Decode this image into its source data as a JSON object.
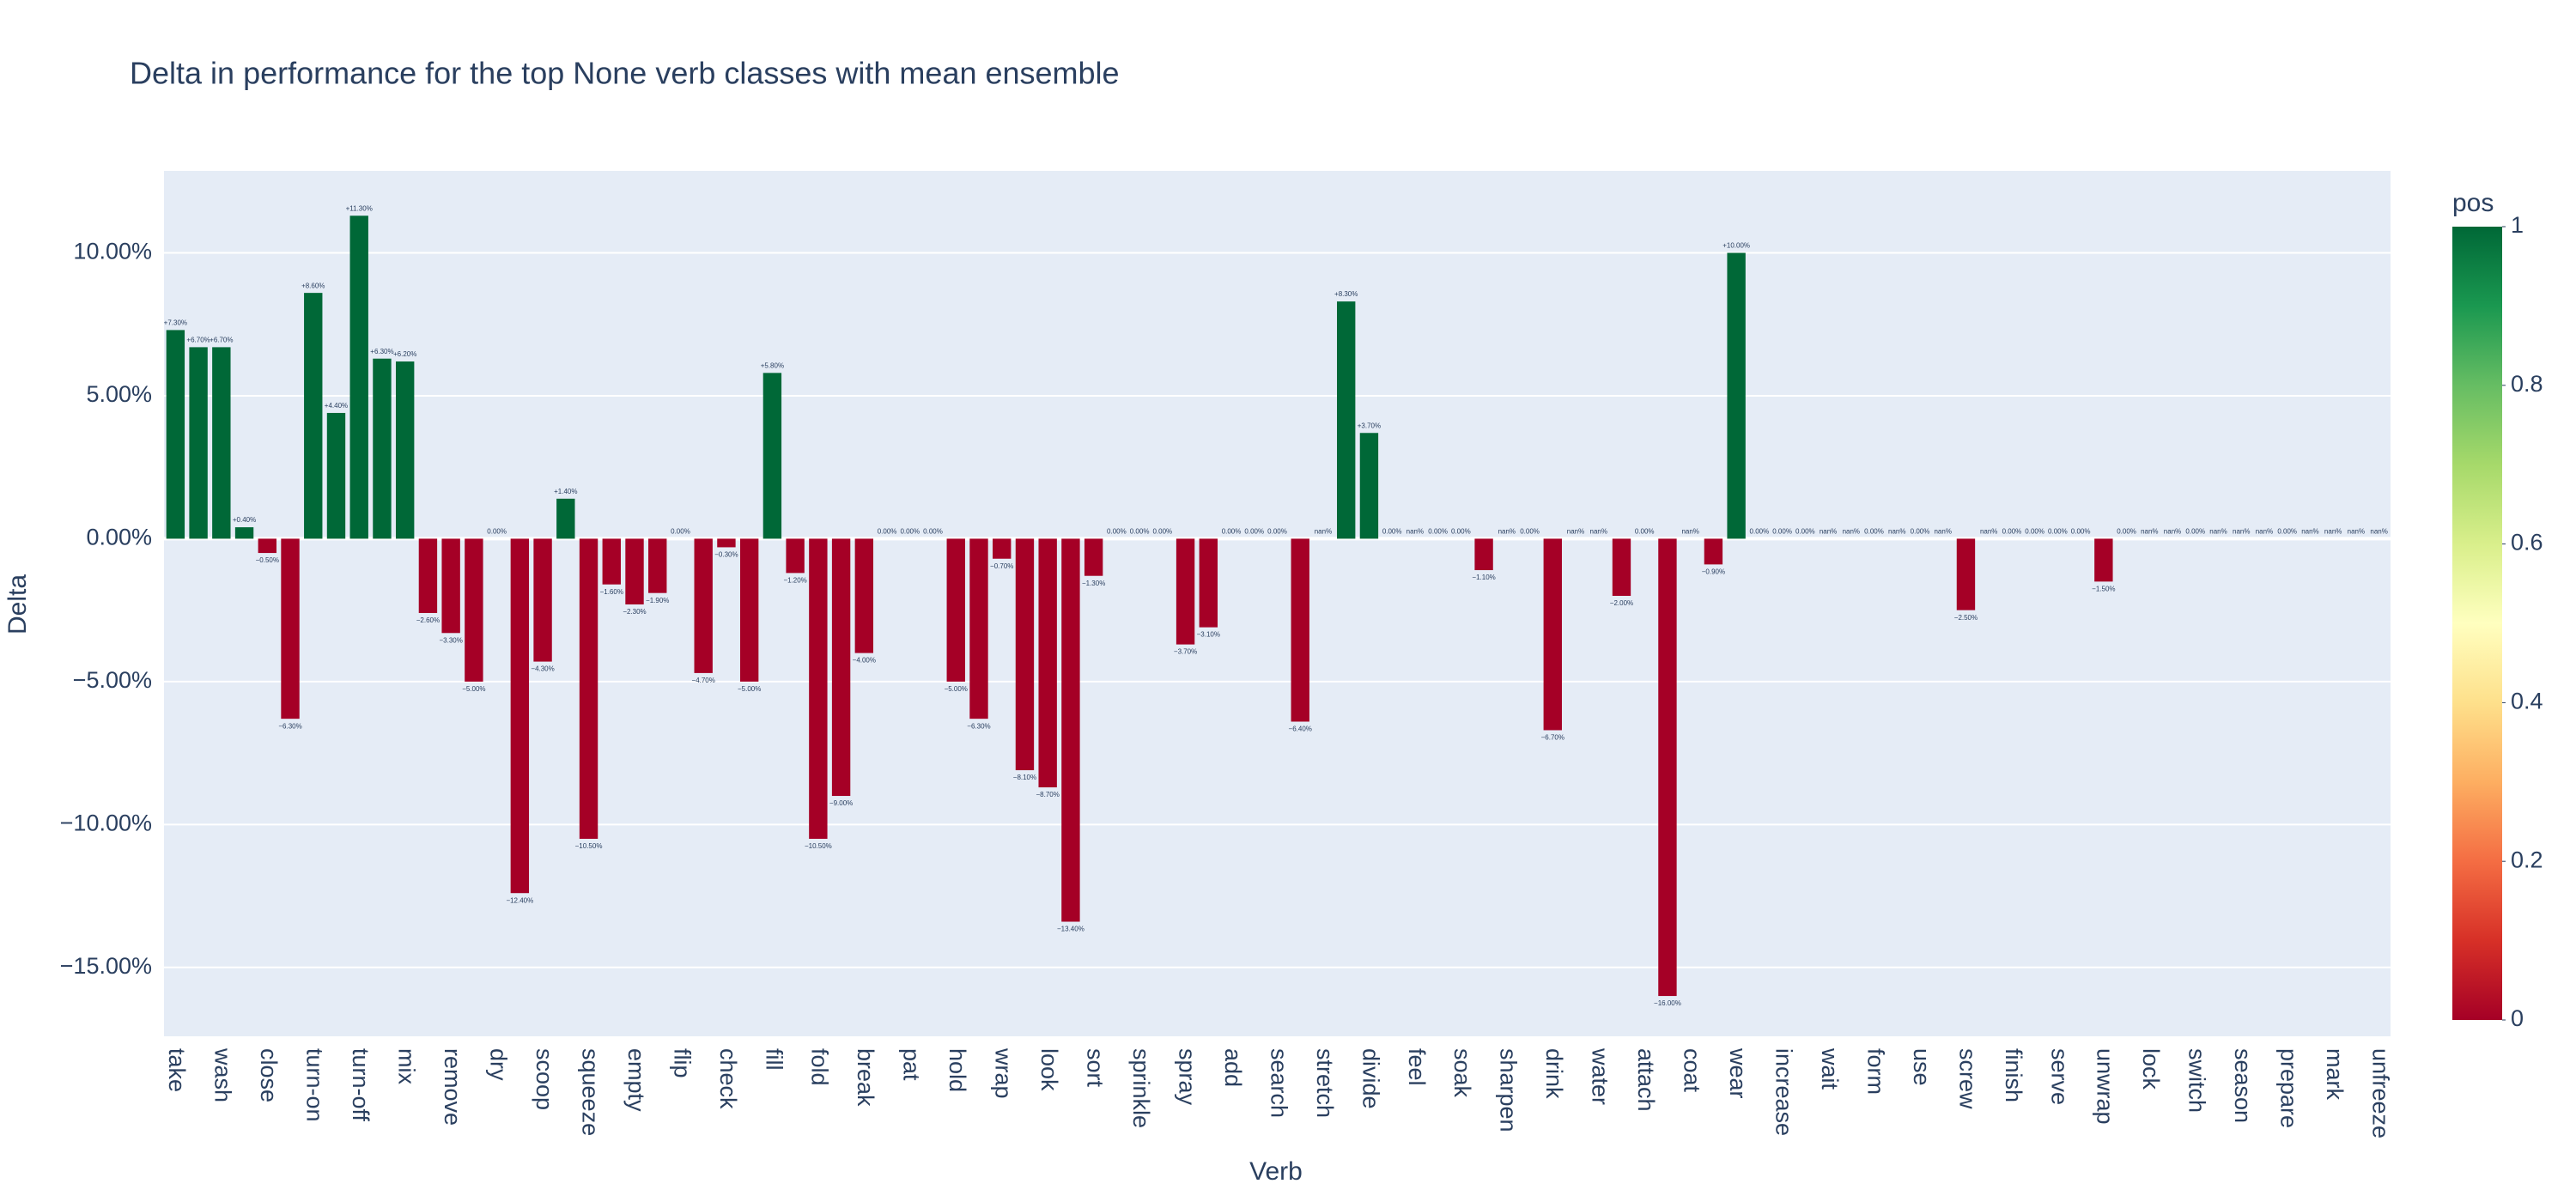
{
  "chart_data": {
    "type": "bar",
    "title": "Delta in performance for the top None verb classes with mean ensemble",
    "x_label": "Verb",
    "y_label": "Delta",
    "categories": [
      "take",
      null,
      "wash",
      null,
      "close",
      null,
      "turn-on",
      null,
      "turn-off",
      null,
      "mix",
      null,
      "remove",
      null,
      "dry",
      null,
      "scoop",
      null,
      "squeeze",
      null,
      "empty",
      null,
      "flip",
      null,
      "check",
      null,
      "fill",
      null,
      "fold",
      null,
      "break",
      null,
      "pat",
      null,
      "hold",
      null,
      "wrap",
      null,
      "look",
      null,
      "sort",
      null,
      "sprinkle",
      null,
      "spray",
      null,
      "add",
      null,
      "search",
      null,
      "stretch",
      null,
      "divide",
      null,
      "feel",
      null,
      "soak",
      null,
      "sharpen",
      null,
      "drink",
      null,
      "water",
      null,
      "attach",
      null,
      "coat",
      null,
      "wear",
      null,
      "increase",
      null,
      "wait",
      null,
      "form",
      null,
      "use",
      null,
      "screw",
      null,
      "finish",
      null,
      "serve",
      null,
      "unwrap",
      null,
      "lock",
      null,
      "switch",
      null,
      "season",
      null,
      "prepare",
      null,
      "mark",
      null,
      "unfreeze"
    ],
    "values": [
      7.3,
      6.7,
      6.7,
      0.4,
      -0.5,
      -6.3,
      8.6,
      4.4,
      11.3,
      6.3,
      6.2,
      -2.6,
      -3.3,
      -5.0,
      0,
      -12.4,
      -4.3,
      1.4,
      -10.5,
      -1.6,
      -2.3,
      -1.9,
      0,
      -4.7,
      -0.3,
      -5.0,
      5.8,
      -1.2,
      -10.5,
      -9.0,
      -4.0,
      0,
      0,
      0,
      -5.0,
      -6.3,
      -0.7,
      -8.1,
      -8.7,
      -13.4,
      -1.3,
      0,
      0,
      0,
      -3.7,
      -3.1,
      0,
      0,
      0,
      -6.4,
      null,
      8.3,
      3.7,
      0,
      null,
      0,
      0,
      -1.1,
      null,
      0,
      -6.7,
      null,
      null,
      -2.0,
      0,
      -16.0,
      null,
      -0.9,
      10.0,
      0,
      0,
      0,
      null,
      null,
      0,
      null,
      0,
      null,
      -2.5,
      null,
      0,
      0,
      0,
      0,
      -1.5,
      0,
      null,
      null,
      0,
      null,
      null,
      null,
      0,
      null,
      null,
      null,
      null
    ],
    "value_labels": [
      "+7.30%",
      "+6.70%",
      "+6.70%",
      "+0.40%",
      "−0.50%",
      "−6.30%",
      "+8.60%",
      "+4.40%",
      "+11.30%",
      "+6.30%",
      "+6.20%",
      "−2.60%",
      "−3.30%",
      "−5.00%",
      "0.00%",
      "−12.40%",
      "−4.30%",
      "+1.40%",
      "−10.50%",
      "−1.60%",
      "−2.30%",
      "−1.90%",
      "0.00%",
      "−4.70%",
      "−0.30%",
      "−5.00%",
      "+5.80%",
      "−1.20%",
      "−10.50%",
      "−9.00%",
      "−4.00%",
      "0.00%",
      "0.00%",
      "0.00%",
      "−5.00%",
      "−6.30%",
      "−0.70%",
      "−8.10%",
      "−8.70%",
      "−13.40%",
      "−1.30%",
      "0.00%",
      "0.00%",
      "0.00%",
      "−3.70%",
      "−3.10%",
      "0.00%",
      "0.00%",
      "0.00%",
      "−6.40%",
      "nan%",
      "+8.30%",
      "+3.70%",
      "0.00%",
      "nan%",
      "0.00%",
      "0.00%",
      "−1.10%",
      "nan%",
      "0.00%",
      "−6.70%",
      "nan%",
      "nan%",
      "−2.00%",
      "0.00%",
      "−16.00%",
      "nan%",
      "−0.90%",
      "+10.00%",
      "0.00%",
      "0.00%",
      "0.00%",
      "nan%",
      "nan%",
      "0.00%",
      "nan%",
      "0.00%",
      "nan%",
      "−2.50%",
      "nan%",
      "0.00%",
      "0.00%",
      "0.00%",
      "0.00%",
      "−1.50%",
      "0.00%",
      "nan%",
      "nan%",
      "0.00%",
      "nan%",
      "nan%",
      "nan%",
      "0.00%",
      "nan%",
      "nan%",
      "nan%",
      "nan%"
    ],
    "ylim": [
      -17.41,
      12.87
    ],
    "yticks": [
      {
        "value": -15,
        "label": "−15.00%"
      },
      {
        "value": -10,
        "label": "−10.00%"
      },
      {
        "value": -5,
        "label": "−5.00%"
      },
      {
        "value": 0,
        "label": "0.00%"
      },
      {
        "value": 5,
        "label": "5.00%"
      },
      {
        "value": 10,
        "label": "10.00%"
      }
    ],
    "grid": true,
    "colorbar": {
      "title": "pos",
      "clim": [
        0,
        1
      ],
      "ticks": [
        0,
        0.2,
        0.4,
        0.6,
        0.8,
        1
      ],
      "colorscale": [
        [
          0,
          "#a50026"
        ],
        [
          0.1,
          "#d73027"
        ],
        [
          0.2,
          "#f46d43"
        ],
        [
          0.3,
          "#fdae61"
        ],
        [
          0.4,
          "#fee08b"
        ],
        [
          0.5,
          "#ffffbf"
        ],
        [
          0.6,
          "#d9ef8b"
        ],
        [
          0.7,
          "#a6d96a"
        ],
        [
          0.8,
          "#66bd63"
        ],
        [
          0.9,
          "#1a9850"
        ],
        [
          1,
          "#006837"
        ]
      ]
    }
  }
}
